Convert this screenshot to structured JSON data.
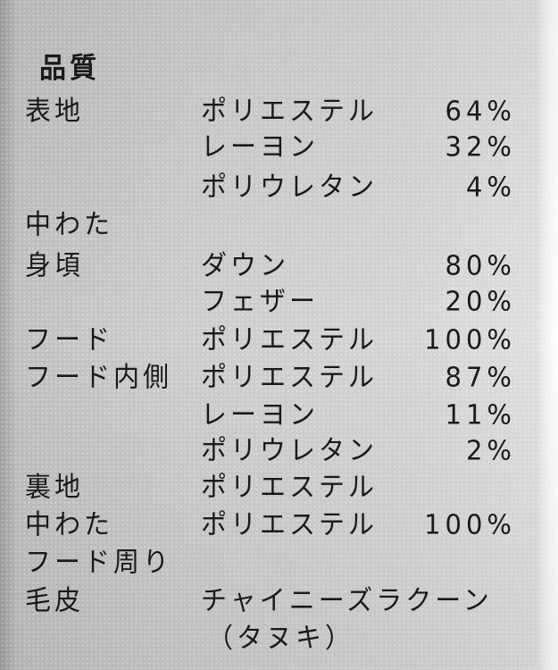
{
  "label": {
    "heading": "品質",
    "rows": [
      {
        "part": "表地",
        "material": "ポリエステル",
        "percent": "64%"
      },
      {
        "part": "",
        "material": "レーヨン",
        "percent": "32%"
      },
      {
        "part": "",
        "material": "ポリウレタン",
        "percent": "4%"
      },
      {
        "part": "中わた",
        "material": "",
        "percent": ""
      },
      {
        "part": "身頃",
        "material": "ダウン",
        "percent": "80%"
      },
      {
        "part": "",
        "material": "フェザー",
        "percent": "20%"
      },
      {
        "part": "フード",
        "material": "ポリエステル",
        "percent": "100%"
      },
      {
        "part": "フード内側",
        "material": "ポリエステル",
        "percent": "87%"
      },
      {
        "part": "",
        "material": "レーヨン",
        "percent": "11%"
      },
      {
        "part": "",
        "material": "ポリウレタン",
        "percent": "2%"
      },
      {
        "part": "裏地",
        "material": "ポリエステル",
        "percent": ""
      },
      {
        "part": "中わた",
        "material": "ポリエステル",
        "percent": "100%"
      },
      {
        "part": "フード周り",
        "material": "",
        "percent": ""
      },
      {
        "part": "毛皮",
        "material": "チャイニーズラクーン",
        "percent": ""
      },
      {
        "part": "",
        "material": "（タヌキ）",
        "percent": ""
      }
    ]
  }
}
